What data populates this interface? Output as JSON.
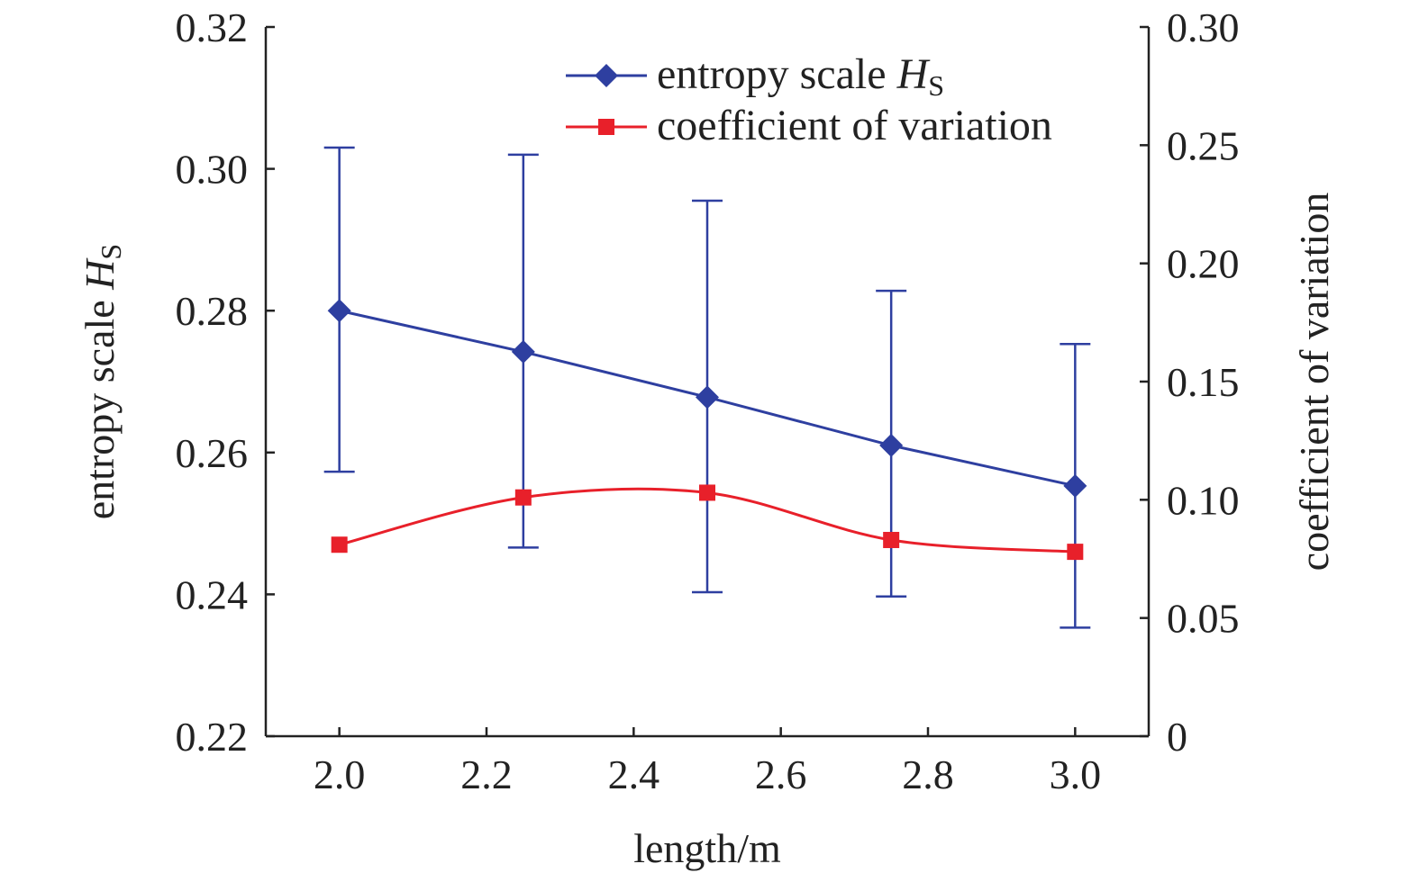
{
  "chart_data": {
    "type": "line",
    "x": [
      2.0,
      2.25,
      2.5,
      2.75,
      3.0
    ],
    "xlabel": "length/m",
    "xlim": [
      1.9,
      3.1
    ],
    "xticks": [
      "2.0",
      "2.2",
      "2.4",
      "2.6",
      "2.8",
      "3.0"
    ],
    "y_left": {
      "label": "entropy scale",
      "label_italic": "H",
      "label_sub": "S",
      "lim": [
        0.22,
        0.32
      ],
      "ticks": [
        "0.22",
        "0.24",
        "0.26",
        "0.28",
        "0.30",
        "0.32"
      ]
    },
    "y_right": {
      "label": "coefficient of variation",
      "lim": [
        0,
        0.3
      ],
      "ticks": [
        "0",
        "0.05",
        "0.10",
        "0.15",
        "0.20",
        "0.25",
        "0.30"
      ]
    },
    "series": [
      {
        "name": "entropy scale",
        "name_italic": "H",
        "name_sub": "S",
        "axis": "left",
        "marker": "diamond",
        "color": "#2e3fa0",
        "values": [
          0.28,
          0.2742,
          0.2678,
          0.261,
          0.2553
        ],
        "error_upper": [
          0.303,
          0.302,
          0.2955,
          0.2828,
          0.2753
        ],
        "error_lower": [
          0.2573,
          0.2466,
          0.2403,
          0.2397,
          0.2353
        ]
      },
      {
        "name": "coefficient of variation",
        "axis": "right",
        "marker": "square",
        "color": "#e8202a",
        "smooth": true,
        "values": [
          0.081,
          0.101,
          0.103,
          0.083,
          0.078
        ]
      }
    ],
    "legend": "top-right",
    "grid": false
  }
}
